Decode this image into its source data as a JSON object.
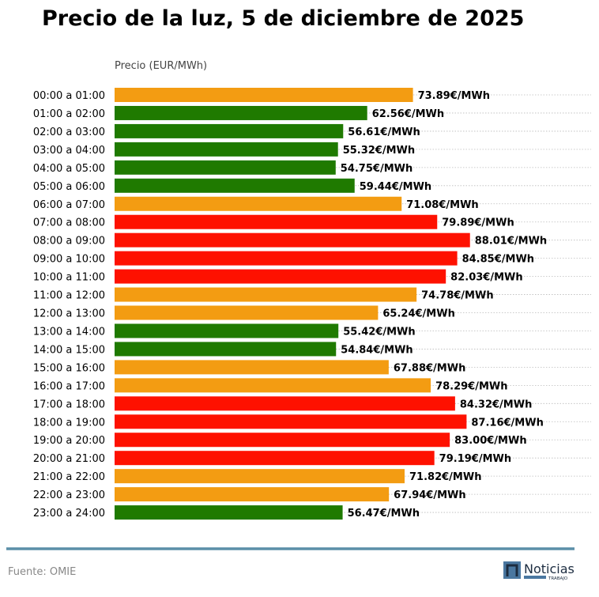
{
  "chart_data": {
    "type": "bar",
    "orientation": "horizontal",
    "title": "Precio de la luz, 5 de diciembre de 2025",
    "xlabel": "Precio (EUR/MWh)",
    "xlim": [
      0,
      118
    ],
    "grid": "dotted horizontal lines per row",
    "value_suffix": "€/MWh",
    "categories": [
      "00:00 a 01:00",
      "01:00 a 02:00",
      "02:00 a 03:00",
      "03:00 a 04:00",
      "04:00 a 05:00",
      "05:00 a 06:00",
      "06:00 a 07:00",
      "07:00 a 08:00",
      "08:00 a 09:00",
      "09:00 a 10:00",
      "10:00 a 11:00",
      "11:00 a 12:00",
      "12:00 a 13:00",
      "13:00 a 14:00",
      "14:00 a 15:00",
      "15:00 a 16:00",
      "16:00 a 17:00",
      "17:00 a 18:00",
      "18:00 a 19:00",
      "19:00 a 20:00",
      "20:00 a 21:00",
      "21:00 a 22:00",
      "22:00 a 23:00",
      "23:00 a 24:00"
    ],
    "values": [
      73.89,
      62.56,
      56.61,
      55.32,
      54.75,
      59.44,
      71.08,
      79.89,
      88.01,
      84.85,
      82.03,
      74.78,
      65.24,
      55.42,
      54.84,
      67.88,
      78.29,
      84.32,
      87.16,
      83.0,
      79.19,
      71.82,
      67.94,
      56.47
    ],
    "levels": [
      "mid",
      "low",
      "low",
      "low",
      "low",
      "low",
      "mid",
      "high",
      "high",
      "high",
      "high",
      "mid",
      "mid",
      "low",
      "low",
      "mid",
      "mid",
      "high",
      "high",
      "high",
      "high",
      "mid",
      "mid",
      "low"
    ],
    "colors": {
      "low": "#1f7a00",
      "mid": "#f39c12",
      "high": "#fe1100"
    }
  },
  "footer": {
    "source": "Fuente: OMIE",
    "logo_text": "Noticias",
    "logo_sub": "TRABAJO",
    "rule_color": "#5b8fa8"
  }
}
